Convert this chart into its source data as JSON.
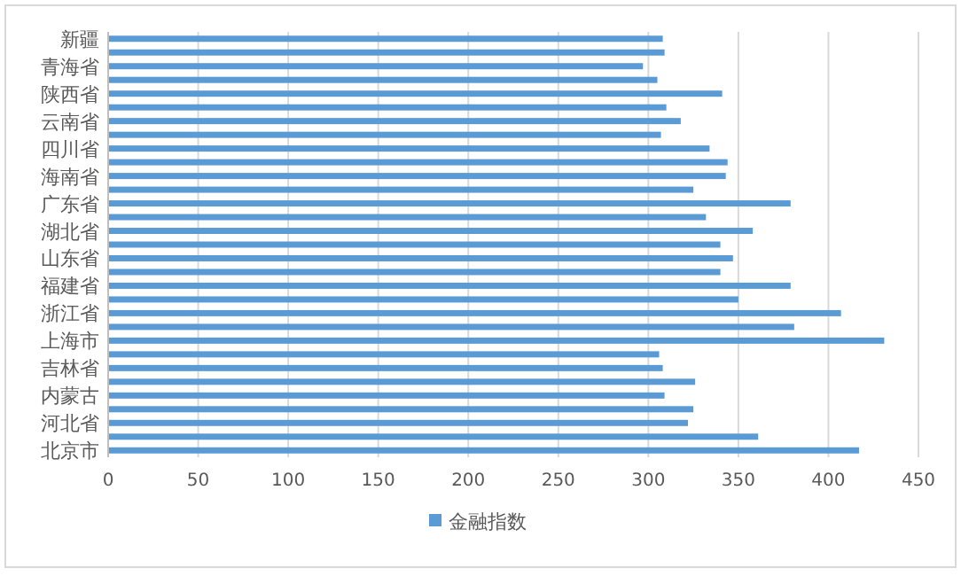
{
  "chart_data": {
    "type": "bar",
    "orientation": "horizontal",
    "categories": [
      "新疆",
      null,
      "青海省",
      null,
      "陕西省",
      null,
      "云南省",
      null,
      "四川省",
      null,
      "海南省",
      null,
      "广东省",
      null,
      "湖北省",
      null,
      "山东省",
      null,
      "福建省",
      null,
      "浙江省",
      null,
      "上海市",
      null,
      "吉林省",
      null,
      "内蒙古",
      null,
      "河北省",
      null,
      "北京市"
    ],
    "series": [
      {
        "name": "金融指数",
        "color": "#5b9bd5",
        "values": [
          308,
          309,
          297,
          305,
          341,
          310,
          318,
          307,
          334,
          344,
          343,
          325,
          379,
          332,
          358,
          340,
          347,
          340,
          379,
          350,
          407,
          381,
          431,
          306,
          308,
          326,
          309,
          325,
          322,
          361,
          417
        ]
      }
    ],
    "xlim": [
      0,
      450
    ],
    "xticks": [
      0,
      50,
      100,
      150,
      200,
      250,
      300,
      350,
      400,
      450
    ],
    "grid": "x",
    "legend": "bottom"
  }
}
